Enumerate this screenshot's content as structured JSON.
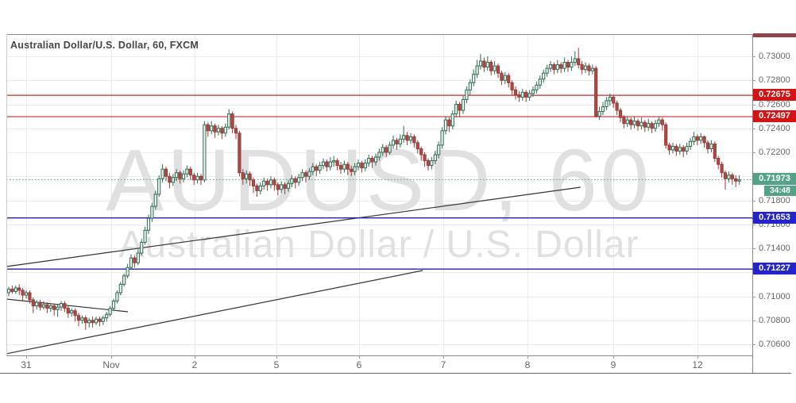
{
  "title": "Australian Dollar/U.S. Dollar, 60, FXCM",
  "watermark": {
    "line1": "AUDUSD, 60",
    "line2": "Australian Dollar / U.S. Dollar"
  },
  "colors": {
    "up_fill": "#ecf3ee",
    "up_stroke": "#2e6b52",
    "down_fill": "#b04843",
    "down_stroke": "#963c38",
    "red_level": "#c92b2b",
    "blue_level": "#2222aa",
    "last_price_line": "#4f9d88",
    "badge_red": "#d31414",
    "badge_blue": "#2424cc",
    "badge_green": "#55a28b",
    "maroon_clip": "#8e4449",
    "trendline": "#333333",
    "grid": "#ececec",
    "watermark": "#e0e0e0",
    "axis_text": "#666666",
    "title_text": "#454545",
    "border": "#888888",
    "tick": "#999999"
  },
  "levels": {
    "resistance": [
      0.72675,
      0.72497
    ],
    "support": [
      0.71653,
      0.71227
    ],
    "last_price": 0.71973,
    "countdown": "34:48"
  },
  "trendlines": [
    {
      "i1": -0.7,
      "p1": 0.71248,
      "i2": 163.6,
      "p2": 0.71909
    },
    {
      "i1": -0.7,
      "p1": 0.70521,
      "i2": 118.4,
      "p2": 0.71215
    },
    {
      "i1": -0.7,
      "p1": 0.70977,
      "i2": 34.1,
      "p2": 0.70871
    }
  ],
  "price_axis": {
    "grid_prices": [
      0.73,
      0.728,
      0.726,
      0.724,
      0.722,
      0.72,
      0.718,
      0.716,
      0.714,
      0.712,
      0.71,
      0.708,
      0.706
    ],
    "labels": [
      {
        "text": "0.73000",
        "price": 0.73
      },
      {
        "text": "0.72800",
        "price": 0.728
      },
      {
        "text": "0.72600",
        "price": 0.726
      },
      {
        "text": "0.72400",
        "price": 0.724
      },
      {
        "text": "0.72200",
        "price": 0.722
      },
      {
        "text": "0.71800",
        "price": 0.718
      },
      {
        "text": "0.71600",
        "price": 0.716
      },
      {
        "text": "0.71400",
        "price": 0.714
      },
      {
        "text": "0.71000",
        "price": 0.71
      },
      {
        "text": "0.70800",
        "price": 0.708
      },
      {
        "text": "0.70600",
        "price": 0.706
      }
    ],
    "badges": [
      {
        "text": "0.72675",
        "price": 0.72675,
        "bg": "red",
        "type": "resistance-level"
      },
      {
        "text": "0.72497",
        "price": 0.72497,
        "bg": "red",
        "type": "resistance-level"
      },
      {
        "text": "0.71973",
        "price": 0.71973,
        "bg": "green",
        "type": "last-price"
      },
      {
        "text": "0.71653",
        "price": 0.71653,
        "bg": "blue",
        "type": "support-level"
      },
      {
        "text": "0.71227",
        "price": 0.71227,
        "bg": "blue",
        "type": "support-level"
      }
    ]
  },
  "time_axis": {
    "ticks": [
      {
        "label": "31",
        "i": 5
      },
      {
        "label": "Nov",
        "i": 29.3
      },
      {
        "label": "2",
        "i": 53.2
      },
      {
        "label": "5",
        "i": 76.6
      },
      {
        "label": "6",
        "i": 100.2
      },
      {
        "label": "7",
        "i": 124.3
      },
      {
        "label": "8",
        "i": 148.4
      },
      {
        "label": "9",
        "i": 173
      },
      {
        "label": "12",
        "i": 197
      }
    ]
  },
  "chart_data": {
    "type": "candlestick",
    "symbol": "AUDUSD",
    "interval": "60",
    "exchange": "FXCM",
    "title": "Australian Dollar/U.S. Dollar, 60, FXCM",
    "ylim": [
      0.70494,
      0.73185
    ],
    "x_tick_labels": [
      "31",
      "Nov",
      "2",
      "5",
      "6",
      "7",
      "8",
      "9",
      "12"
    ],
    "y_tick_labels": [
      "0.73000",
      "0.72800",
      "0.72600",
      "0.72400",
      "0.72200",
      "0.71800",
      "0.71600",
      "0.71400",
      "0.71000",
      "0.70800",
      "0.70600"
    ],
    "grid": true,
    "price_unit": 0.0001,
    "last_close": 0.71973,
    "candles_format": [
      "open",
      "high",
      "low",
      "close"
    ],
    "candles": [
      [
        7103,
        7108,
        7100,
        7106
      ],
      [
        7106,
        7109,
        7102,
        7104
      ],
      [
        7104,
        7109,
        7102,
        7107
      ],
      [
        7107,
        7110,
        7101,
        7105
      ],
      [
        7105,
        7107,
        7096,
        7101
      ],
      [
        7101,
        7105,
        7098,
        7103
      ],
      [
        7103,
        7105,
        7094,
        7097
      ],
      [
        7097,
        7099,
        7086,
        7092
      ],
      [
        7092,
        7097,
        7089,
        7095
      ],
      [
        7095,
        7097,
        7088,
        7091
      ],
      [
        7091,
        7096,
        7089,
        7093
      ],
      [
        7093,
        7095,
        7086,
        7090
      ],
      [
        7090,
        7094,
        7087,
        7092
      ],
      [
        7092,
        7094,
        7084,
        7089
      ],
      [
        7089,
        7093,
        7083,
        7091
      ],
      [
        7091,
        7096,
        7088,
        7094
      ],
      [
        7094,
        7096,
        7087,
        7090
      ],
      [
        7090,
        7092,
        7082,
        7086
      ],
      [
        7086,
        7090,
        7083,
        7088
      ],
      [
        7088,
        7090,
        7079,
        7084
      ],
      [
        7084,
        7086,
        7075,
        7080
      ],
      [
        7080,
        7084,
        7077,
        7082
      ],
      [
        7082,
        7084,
        7072,
        7078
      ],
      [
        7078,
        7082,
        7074,
        7080
      ],
      [
        7080,
        7083,
        7074,
        7078
      ],
      [
        7078,
        7083,
        7076,
        7081
      ],
      [
        7081,
        7083,
        7075,
        7079
      ],
      [
        7079,
        7084,
        7076,
        7082
      ],
      [
        7082,
        7087,
        7079,
        7085
      ],
      [
        7085,
        7092,
        7083,
        7090
      ],
      [
        7090,
        7098,
        7088,
        7096
      ],
      [
        7096,
        7105,
        7094,
        7103
      ],
      [
        7103,
        7112,
        7101,
        7110
      ],
      [
        7110,
        7119,
        7108,
        7117
      ],
      [
        7117,
        7127,
        7115,
        7124
      ],
      [
        7124,
        7135,
        7122,
        7132
      ],
      [
        7132,
        7134,
        7124,
        7128
      ],
      [
        7128,
        7139,
        7126,
        7136
      ],
      [
        7136,
        7148,
        7134,
        7145
      ],
      [
        7145,
        7158,
        7143,
        7155
      ],
      [
        7155,
        7168,
        7152,
        7165
      ],
      [
        7165,
        7178,
        7162,
        7175
      ],
      [
        7175,
        7188,
        7172,
        7185
      ],
      [
        7185,
        7201,
        7183,
        7198
      ],
      [
        7198,
        7210,
        7195,
        7206
      ],
      [
        7206,
        7208,
        7196,
        7200
      ],
      [
        7200,
        7203,
        7190,
        7195
      ],
      [
        7195,
        7202,
        7192,
        7199
      ],
      [
        7199,
        7206,
        7196,
        7203
      ],
      [
        7203,
        7205,
        7194,
        7198
      ],
      [
        7198,
        7205,
        7195,
        7202
      ],
      [
        7202,
        7209,
        7199,
        7206
      ],
      [
        7206,
        7208,
        7197,
        7201
      ],
      [
        7201,
        7203,
        7193,
        7197
      ],
      [
        7197,
        7203,
        7194,
        7200
      ],
      [
        7200,
        7202,
        7193,
        7197
      ],
      [
        7197,
        7246,
        7195,
        7243
      ],
      [
        7243,
        7245,
        7233,
        7238
      ],
      [
        7238,
        7246,
        7235,
        7242
      ],
      [
        7242,
        7244,
        7232,
        7237
      ],
      [
        7237,
        7243,
        7234,
        7240
      ],
      [
        7240,
        7242,
        7231,
        7236
      ],
      [
        7236,
        7244,
        7233,
        7241
      ],
      [
        7241,
        7256,
        7239,
        7252
      ],
      [
        7252,
        7254,
        7236,
        7240
      ],
      [
        7240,
        7243,
        7231,
        7236
      ],
      [
        7236,
        7238,
        7200,
        7203
      ],
      [
        7203,
        7206,
        7193,
        7198
      ],
      [
        7198,
        7205,
        7194,
        7202
      ],
      [
        7202,
        7204,
        7192,
        7197
      ],
      [
        7197,
        7199,
        7186,
        7192
      ],
      [
        7192,
        7194,
        7183,
        7188
      ],
      [
        7188,
        7195,
        7185,
        7192
      ],
      [
        7192,
        7199,
        7189,
        7196
      ],
      [
        7196,
        7198,
        7188,
        7193
      ],
      [
        7193,
        7200,
        7190,
        7197
      ],
      [
        7197,
        7199,
        7188,
        7193
      ],
      [
        7193,
        7195,
        7184,
        7189
      ],
      [
        7189,
        7196,
        7186,
        7193
      ],
      [
        7193,
        7195,
        7185,
        7190
      ],
      [
        7190,
        7197,
        7187,
        7194
      ],
      [
        7194,
        7201,
        7191,
        7198
      ],
      [
        7198,
        7200,
        7190,
        7195
      ],
      [
        7195,
        7202,
        7192,
        7199
      ],
      [
        7199,
        7206,
        7196,
        7203
      ],
      [
        7203,
        7205,
        7195,
        7200
      ],
      [
        7200,
        7207,
        7197,
        7204
      ],
      [
        7204,
        7211,
        7201,
        7208
      ],
      [
        7208,
        7210,
        7200,
        7205
      ],
      [
        7205,
        7212,
        7202,
        7209
      ],
      [
        7209,
        7215,
        7206,
        7212
      ],
      [
        7212,
        7214,
        7204,
        7208
      ],
      [
        7208,
        7216,
        7205,
        7212
      ],
      [
        7212,
        7217,
        7208,
        7213
      ],
      [
        7213,
        7215,
        7205,
        7209
      ],
      [
        7209,
        7212,
        7202,
        7206
      ],
      [
        7206,
        7213,
        7203,
        7210
      ],
      [
        7210,
        7212,
        7201,
        7206
      ],
      [
        7206,
        7209,
        7200,
        7204
      ],
      [
        7204,
        7211,
        7201,
        7208
      ],
      [
        7208,
        7214,
        7205,
        7211
      ],
      [
        7211,
        7213,
        7203,
        7207
      ],
      [
        7207,
        7214,
        7204,
        7211
      ],
      [
        7211,
        7218,
        7208,
        7215
      ],
      [
        7215,
        7217,
        7207,
        7212
      ],
      [
        7212,
        7219,
        7209,
        7216
      ],
      [
        7216,
        7223,
        7213,
        7220
      ],
      [
        7220,
        7227,
        7217,
        7224
      ],
      [
        7224,
        7226,
        7216,
        7220
      ],
      [
        7220,
        7229,
        7218,
        7226
      ],
      [
        7226,
        7234,
        7223,
        7230
      ],
      [
        7230,
        7232,
        7222,
        7227
      ],
      [
        7227,
        7235,
        7224,
        7231
      ],
      [
        7231,
        7242,
        7228,
        7234
      ],
      [
        7234,
        7237,
        7226,
        7230
      ],
      [
        7230,
        7236,
        7227,
        7233
      ],
      [
        7233,
        7235,
        7224,
        7228
      ],
      [
        7228,
        7230,
        7219,
        7223
      ],
      [
        7223,
        7225,
        7213,
        7218
      ],
      [
        7218,
        7220,
        7208,
        7213
      ],
      [
        7213,
        7215,
        7205,
        7209
      ],
      [
        7209,
        7216,
        7206,
        7213
      ],
      [
        7213,
        7221,
        7210,
        7218
      ],
      [
        7218,
        7229,
        7215,
        7226
      ],
      [
        7226,
        7241,
        7223,
        7238
      ],
      [
        7238,
        7250,
        7235,
        7247
      ],
      [
        7247,
        7249,
        7237,
        7242
      ],
      [
        7242,
        7255,
        7239,
        7252
      ],
      [
        7252,
        7263,
        7249,
        7260
      ],
      [
        7260,
        7262,
        7250,
        7255
      ],
      [
        7255,
        7267,
        7252,
        7264
      ],
      [
        7264,
        7275,
        7261,
        7272
      ],
      [
        7272,
        7281,
        7268,
        7278
      ],
      [
        7278,
        7289,
        7275,
        7285
      ],
      [
        7285,
        7297,
        7282,
        7292
      ],
      [
        7292,
        7302,
        7289,
        7296
      ],
      [
        7296,
        7299,
        7287,
        7291
      ],
      [
        7291,
        7300,
        7288,
        7295
      ],
      [
        7295,
        7297,
        7284,
        7288
      ],
      [
        7288,
        7296,
        7285,
        7292
      ],
      [
        7292,
        7294,
        7282,
        7286
      ],
      [
        7286,
        7288,
        7276,
        7280
      ],
      [
        7280,
        7287,
        7277,
        7284
      ],
      [
        7284,
        7286,
        7274,
        7278
      ],
      [
        7278,
        7280,
        7268,
        7272
      ],
      [
        7272,
        7275,
        7264,
        7268
      ],
      [
        7268,
        7271,
        7262,
        7266
      ],
      [
        7266,
        7273,
        7263,
        7270
      ],
      [
        7270,
        7272,
        7262,
        7266
      ],
      [
        7266,
        7272,
        7263,
        7269
      ],
      [
        7269,
        7275,
        7266,
        7272
      ],
      [
        7272,
        7279,
        7269,
        7276
      ],
      [
        7276,
        7284,
        7273,
        7281
      ],
      [
        7281,
        7289,
        7278,
        7286
      ],
      [
        7286,
        7293,
        7283,
        7290
      ],
      [
        7290,
        7296,
        7287,
        7293
      ],
      [
        7293,
        7295,
        7285,
        7289
      ],
      [
        7289,
        7297,
        7286,
        7293
      ],
      [
        7293,
        7295,
        7286,
        7290
      ],
      [
        7290,
        7299,
        7287,
        7295
      ],
      [
        7295,
        7297,
        7287,
        7291
      ],
      [
        7291,
        7300,
        7288,
        7295
      ],
      [
        7295,
        7304,
        7292,
        7298
      ],
      [
        7298,
        7307,
        7290,
        7293
      ],
      [
        7293,
        7296,
        7285,
        7289
      ],
      [
        7289,
        7295,
        7286,
        7292
      ],
      [
        7292,
        7294,
        7284,
        7288
      ],
      [
        7288,
        7293,
        7285,
        7290
      ],
      [
        7290,
        7292,
        7249,
        7250
      ],
      [
        7250,
        7258,
        7247,
        7254
      ],
      [
        7254,
        7262,
        7251,
        7258
      ],
      [
        7258,
        7266,
        7255,
        7263
      ],
      [
        7263,
        7269,
        7259,
        7266
      ],
      [
        7266,
        7268,
        7257,
        7261
      ],
      [
        7261,
        7263,
        7251,
        7255
      ],
      [
        7255,
        7257,
        7245,
        7249
      ],
      [
        7249,
        7251,
        7240,
        7244
      ],
      [
        7244,
        7250,
        7241,
        7247
      ],
      [
        7247,
        7249,
        7239,
        7243
      ],
      [
        7243,
        7250,
        7240,
        7246
      ],
      [
        7246,
        7248,
        7238,
        7242
      ],
      [
        7242,
        7249,
        7239,
        7245
      ],
      [
        7245,
        7247,
        7237,
        7241
      ],
      [
        7241,
        7248,
        7238,
        7244
      ],
      [
        7244,
        7246,
        7236,
        7240
      ],
      [
        7240,
        7247,
        7237,
        7244
      ],
      [
        7244,
        7250,
        7241,
        7247
      ],
      [
        7247,
        7249,
        7238,
        7243
      ],
      [
        7243,
        7245,
        7223,
        7226
      ],
      [
        7226,
        7228,
        7218,
        7222
      ],
      [
        7222,
        7228,
        7219,
        7225
      ],
      [
        7225,
        7227,
        7217,
        7221
      ],
      [
        7221,
        7227,
        7218,
        7224
      ],
      [
        7224,
        7226,
        7216,
        7221
      ],
      [
        7221,
        7228,
        7218,
        7225
      ],
      [
        7225,
        7232,
        7222,
        7229
      ],
      [
        7229,
        7237,
        7226,
        7233
      ],
      [
        7233,
        7235,
        7226,
        7230
      ],
      [
        7230,
        7236,
        7227,
        7233
      ],
      [
        7233,
        7234,
        7224,
        7228
      ],
      [
        7228,
        7230,
        7219,
        7223
      ],
      [
        7223,
        7230,
        7220,
        7227
      ],
      [
        7227,
        7229,
        7212,
        7215
      ],
      [
        7215,
        7217,
        7206,
        7210
      ],
      [
        7210,
        7212,
        7199,
        7203
      ],
      [
        7203,
        7205,
        7189,
        7198
      ],
      [
        7198,
        7204,
        7195,
        7201
      ],
      [
        7201,
        7203,
        7193,
        7198
      ],
      [
        7198,
        7201,
        7191,
        7196
      ],
      [
        7196,
        7201,
        7193,
        7197
      ]
    ]
  }
}
